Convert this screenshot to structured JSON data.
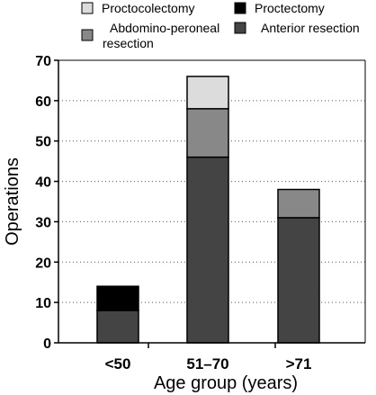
{
  "chart_data": {
    "type": "bar",
    "stacked": true,
    "categories": [
      "<50",
      "51–70",
      ">71"
    ],
    "series": [
      {
        "name": "Anterior resection",
        "color": "#444444",
        "values": [
          8,
          46,
          31
        ]
      },
      {
        "name": "Abdomino-peroneal resection",
        "color": "#888888",
        "values": [
          0,
          12,
          7
        ]
      },
      {
        "name": "Proctocolectomy",
        "color": "#dcdcdc",
        "values": [
          0,
          8,
          0
        ]
      },
      {
        "name": "Proctectomy",
        "color": "#000000",
        "values": [
          6,
          0,
          0
        ]
      }
    ],
    "xlabel": "Age group (years)",
    "ylabel": "Operations",
    "ylim": [
      0,
      70
    ],
    "yticks": [
      "0",
      "10",
      "20",
      "30",
      "40",
      "50",
      "60",
      "70"
    ],
    "grid": "horizontal dotted",
    "legend": [
      {
        "label": "Proctocolectomy",
        "color": "#dcdcdc"
      },
      {
        "label": "Proctectomy",
        "color": "#000000"
      },
      {
        "label": "Abdomino-peroneal resection",
        "color": "#888888"
      },
      {
        "label": "Anterior resection",
        "color": "#444444"
      }
    ],
    "legend_position": "top"
  }
}
